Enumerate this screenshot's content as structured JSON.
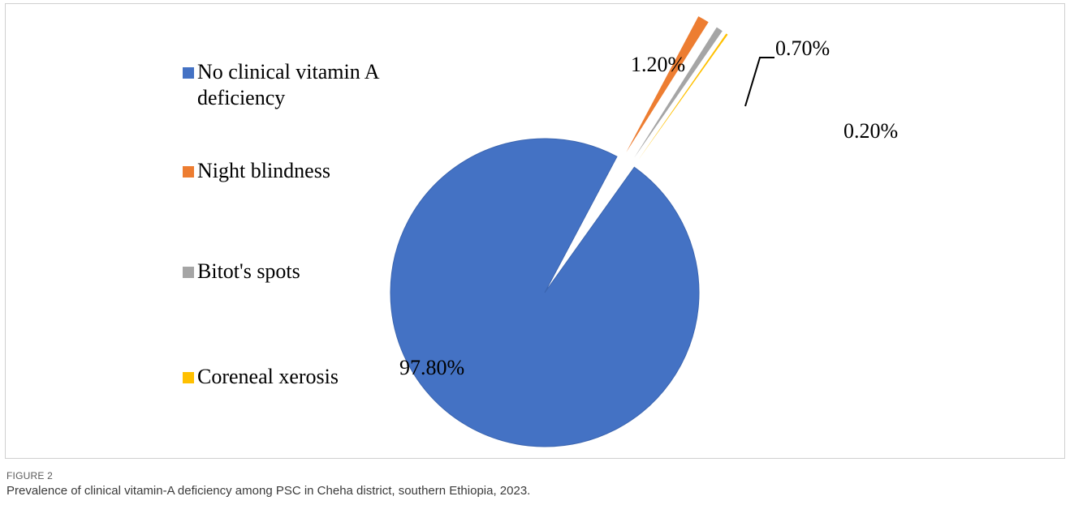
{
  "chart_data": {
    "type": "pie",
    "categories": [
      "No clinical vitamin A deficiency",
      "Night blindness",
      "Bitot's spots",
      "Coreneal xerosis"
    ],
    "values": [
      97.8,
      1.2,
      0.7,
      0.2
    ],
    "labels": [
      "97.80%",
      "1.20%",
      "0.70%",
      "0.20%"
    ],
    "colors": [
      "#4472C4",
      "#ED7D31",
      "#A5A5A5",
      "#FFC000"
    ],
    "legend_position": "left",
    "exploded": [
      false,
      true,
      true,
      true
    ]
  },
  "figure": {
    "number": "FIGURE 2",
    "caption": "Prevalence of clinical vitamin-A deficiency among PSC in Cheha district, southern Ethiopia, 2023."
  }
}
